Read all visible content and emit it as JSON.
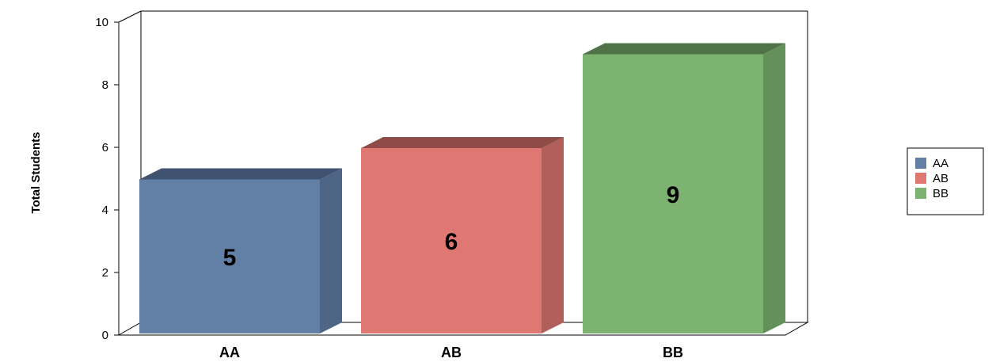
{
  "chart_data": {
    "type": "bar",
    "categories": [
      "AA",
      "AB",
      "BB"
    ],
    "values": [
      5,
      6,
      9
    ],
    "ylabel": "Total Students",
    "ylim": [
      0,
      10
    ],
    "yticks": [
      "0",
      "2",
      "4",
      "6",
      "8",
      "10"
    ],
    "data_labels": [
      "5",
      "6",
      "9"
    ],
    "colors": [
      "#627fa6",
      "#df7873",
      "#7db371"
    ],
    "side_colors": [
      "#4e6585",
      "#b25f5b",
      "#64905a"
    ],
    "top_colors": [
      "#3f5270",
      "#8e4b48",
      "#4f7247"
    ],
    "legend": {
      "position": "right",
      "entries": [
        "AA",
        "AB",
        "BB"
      ]
    },
    "grid": false,
    "style": "3d"
  }
}
